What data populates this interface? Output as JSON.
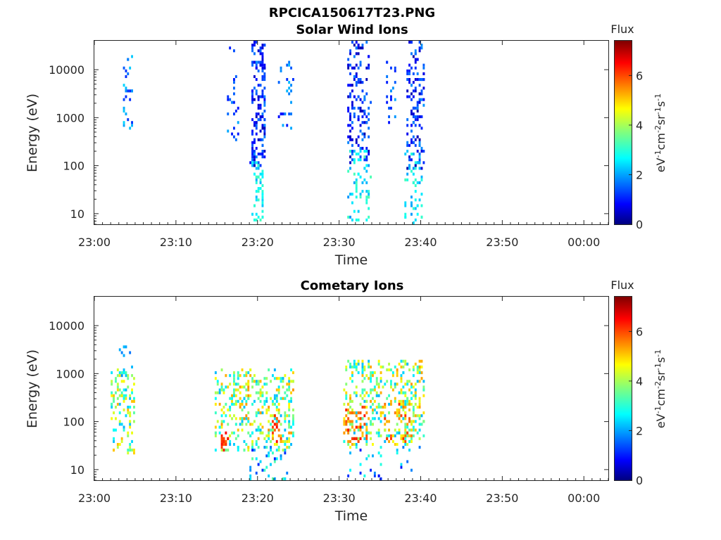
{
  "figure_title": "RPCICA150617T23.PNG",
  "chart_data": [
    {
      "type": "heatmap",
      "title": "Solar Wind Ions",
      "xlabel": "Time",
      "ylabel": "Energy (eV)",
      "y_scale": "log",
      "ylim": [
        6,
        40000
      ],
      "xlim_minutes": [
        0,
        63
      ],
      "x_ticks": [
        "23:00",
        "23:10",
        "23:20",
        "23:30",
        "23:40",
        "23:50",
        "00:00"
      ],
      "y_ticks": [
        "10",
        "100",
        "1000",
        "10000"
      ],
      "y_tick_values": [
        10,
        100,
        1000,
        10000
      ],
      "colorbar": {
        "label_top": "Flux",
        "ticks": [
          "0",
          "2",
          "4",
          "6"
        ],
        "range": [
          0,
          7.4
        ],
        "colormap": "jet"
      },
      "clusters": [
        {
          "t": [
            3.5,
            4.8
          ],
          "e": [
            600,
            18000
          ],
          "f": [
            1.2,
            2.6
          ],
          "n": 28
        },
        {
          "t": [
            16.3,
            17.6
          ],
          "e": [
            300,
            30000
          ],
          "f": [
            1.0,
            2.2
          ],
          "n": 24
        },
        {
          "t": [
            19.2,
            21.0
          ],
          "e": [
            100,
            40000
          ],
          "f": [
            0.3,
            2.0
          ],
          "n": 150
        },
        {
          "t": [
            19.4,
            20.8
          ],
          "e": [
            6,
            120
          ],
          "f": [
            2.2,
            3.3
          ],
          "n": 45
        },
        {
          "t": [
            22.7,
            24.3
          ],
          "e": [
            500,
            15000
          ],
          "f": [
            1.0,
            2.3
          ],
          "n": 25
        },
        {
          "t": [
            31.0,
            33.8
          ],
          "e": [
            120,
            40000
          ],
          "f": [
            0.3,
            1.9
          ],
          "n": 140
        },
        {
          "t": [
            31.0,
            33.8
          ],
          "e": [
            6,
            250
          ],
          "f": [
            2.0,
            3.4
          ],
          "n": 60
        },
        {
          "t": [
            35.8,
            37.0
          ],
          "e": [
            400,
            15000
          ],
          "f": [
            1.0,
            2.2
          ],
          "n": 20
        },
        {
          "t": [
            38.3,
            40.4
          ],
          "e": [
            80,
            40000
          ],
          "f": [
            0.3,
            2.0
          ],
          "n": 130
        },
        {
          "t": [
            38.0,
            40.3
          ],
          "e": [
            6,
            200
          ],
          "f": [
            2.0,
            3.3
          ],
          "n": 50
        }
      ]
    },
    {
      "type": "heatmap",
      "title": "Cometary Ions",
      "xlabel": "Time",
      "ylabel": "Energy (eV)",
      "y_scale": "log",
      "ylim": [
        6,
        40000
      ],
      "xlim_minutes": [
        0,
        63
      ],
      "x_ticks": [
        "23:00",
        "23:10",
        "23:20",
        "23:30",
        "23:40",
        "23:50",
        "00:00"
      ],
      "y_ticks": [
        "10",
        "100",
        "1000",
        "10000"
      ],
      "y_tick_values": [
        10,
        100,
        1000,
        10000
      ],
      "colorbar": {
        "label_top": "Flux",
        "ticks": [
          "0",
          "2",
          "4",
          "6"
        ],
        "range": [
          0,
          7.4
        ],
        "colormap": "jet"
      },
      "clusters": [
        {
          "t": [
            2.0,
            5.0
          ],
          "e": [
            20,
            1200
          ],
          "f": [
            2.2,
            5.2
          ],
          "n": 110
        },
        {
          "t": [
            3.2,
            5.0
          ],
          "e": [
            800,
            4000
          ],
          "f": [
            1.5,
            2.8
          ],
          "n": 12
        },
        {
          "t": [
            14.8,
            24.5
          ],
          "e": [
            25,
            1200
          ],
          "f": [
            2.2,
            5.5
          ],
          "n": 380
        },
        {
          "t": [
            15.5,
            16.3
          ],
          "e": [
            25,
            60
          ],
          "f": [
            5.5,
            6.6
          ],
          "n": 14
        },
        {
          "t": [
            21.8,
            23.0
          ],
          "e": [
            35,
            150
          ],
          "f": [
            5.2,
            6.6
          ],
          "n": 20
        },
        {
          "t": [
            19.0,
            23.8
          ],
          "e": [
            6,
            30
          ],
          "f": [
            1.0,
            3.5
          ],
          "n": 40
        },
        {
          "t": [
            30.5,
            40.5
          ],
          "e": [
            30,
            1800
          ],
          "f": [
            2.2,
            5.4
          ],
          "n": 420
        },
        {
          "t": [
            30.5,
            33.5
          ],
          "e": [
            40,
            250
          ],
          "f": [
            5.0,
            6.4
          ],
          "n": 45
        },
        {
          "t": [
            35.5,
            39.0
          ],
          "e": [
            40,
            250
          ],
          "f": [
            4.8,
            6.2
          ],
          "n": 30
        },
        {
          "t": [
            31.0,
            40.0
          ],
          "e": [
            6,
            30
          ],
          "f": [
            0.8,
            3.2
          ],
          "n": 30
        }
      ]
    }
  ]
}
